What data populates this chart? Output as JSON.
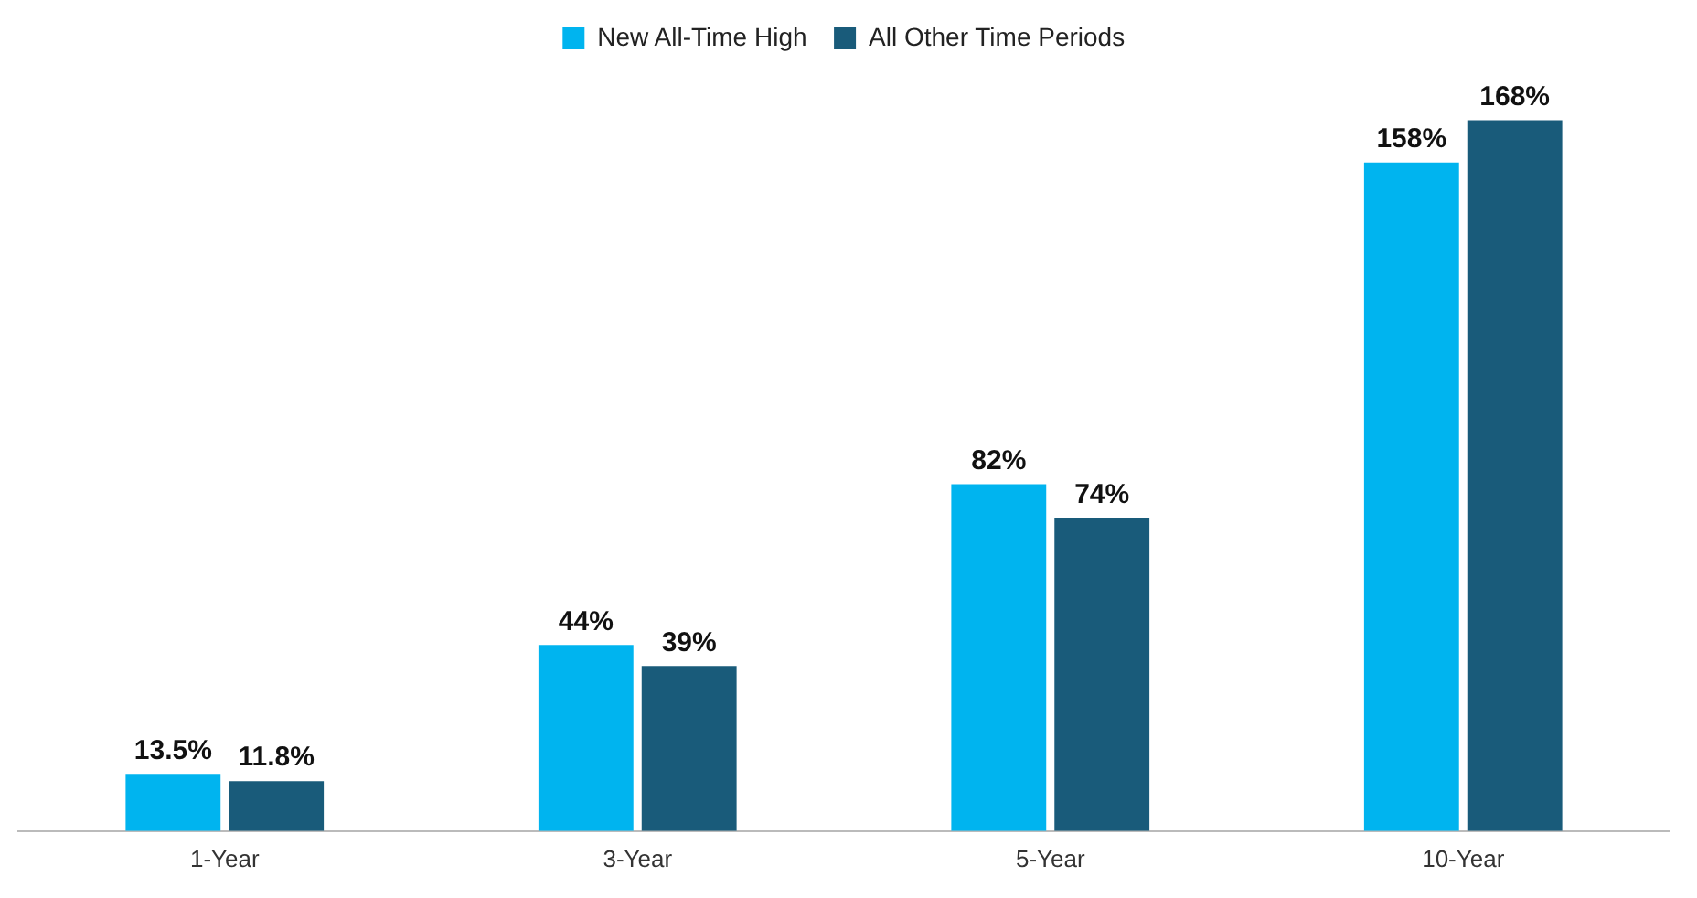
{
  "chart_data": {
    "type": "bar",
    "categories": [
      "1-Year",
      "3-Year",
      "5-Year",
      "10-Year"
    ],
    "series": [
      {
        "name": "New All-Time High",
        "color": "#00b4ef",
        "values": [
          13.5,
          44,
          82,
          158
        ],
        "value_labels": [
          "13.5%",
          "44%",
          "82%",
          "158%"
        ]
      },
      {
        "name": "All Other Time Periods",
        "color": "#195b7a",
        "values": [
          11.8,
          39,
          74,
          168
        ],
        "value_labels": [
          "11.8%",
          "39%",
          "74%",
          "168%"
        ]
      }
    ],
    "grid": false,
    "legend": "top"
  }
}
